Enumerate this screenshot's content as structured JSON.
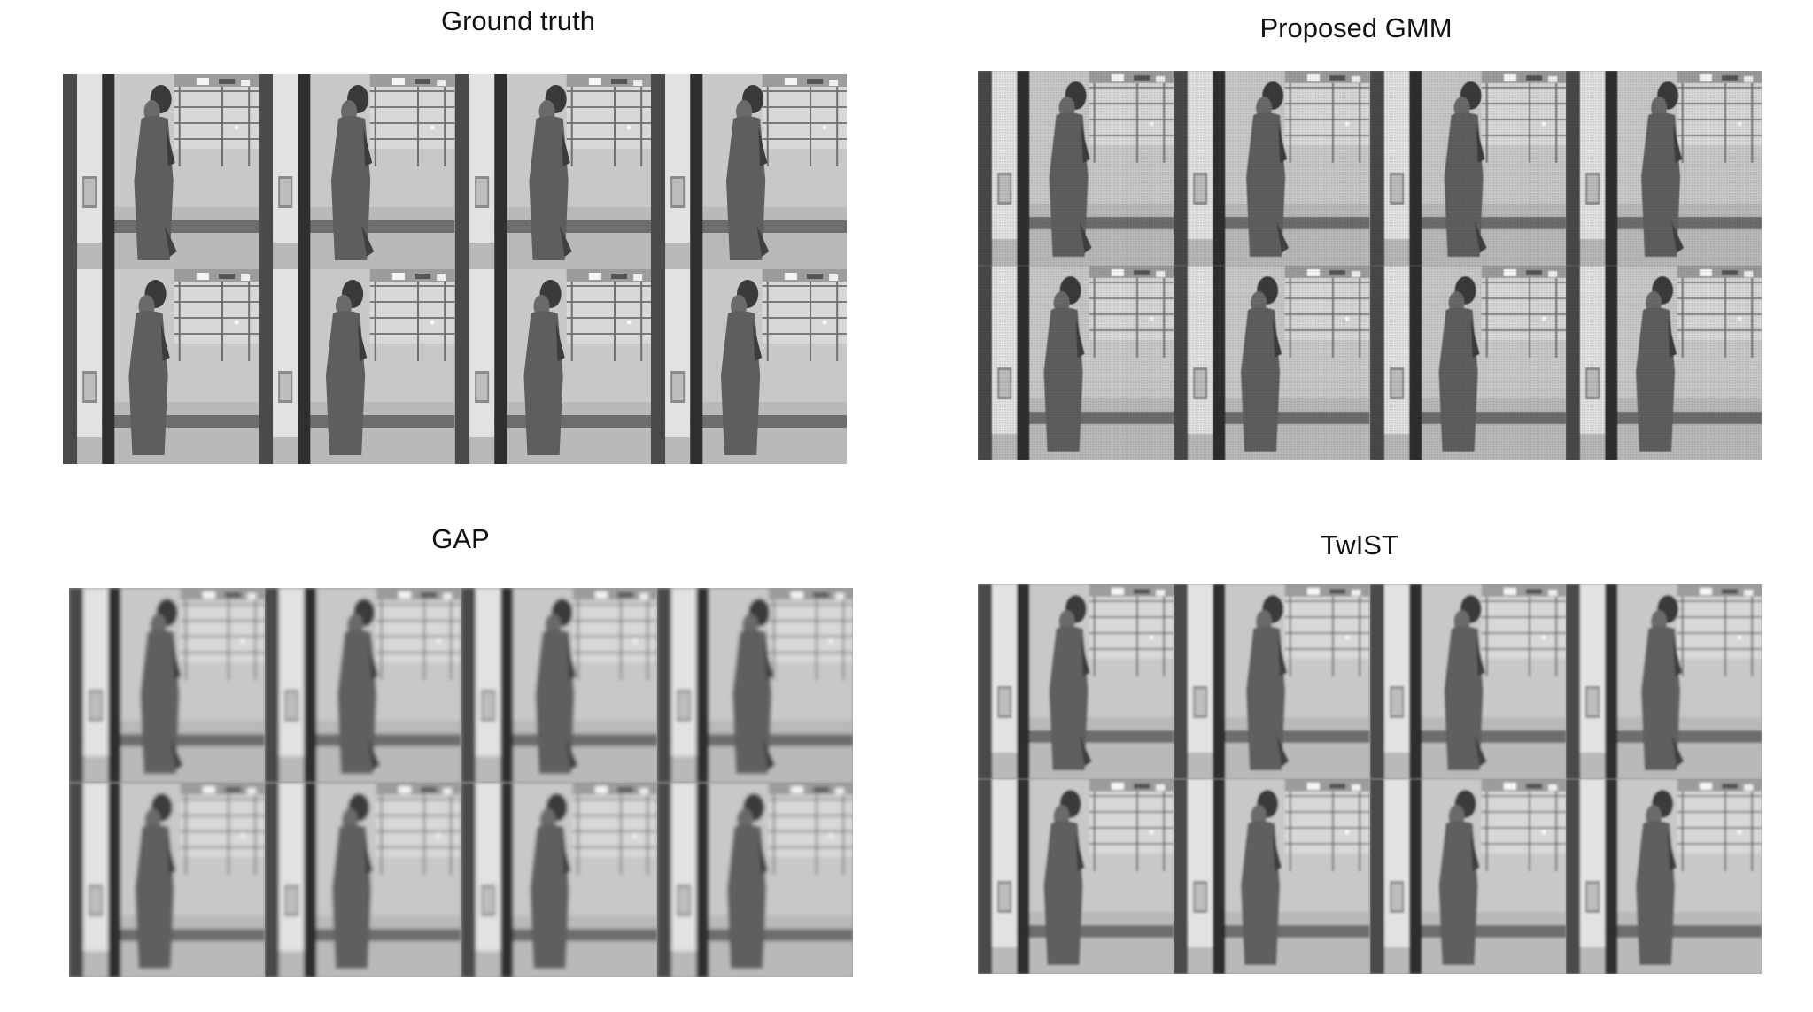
{
  "panels": [
    {
      "id": "ground-truth",
      "title": "Ground truth",
      "frames": 8,
      "quality": "sharp"
    },
    {
      "id": "proposed-gmm",
      "title": "Proposed GMM",
      "frames": 8,
      "quality": "textured"
    },
    {
      "id": "gap",
      "title": "GAP",
      "frames": 8,
      "quality": "blurred"
    },
    {
      "id": "twist",
      "title": "TwIST",
      "frames": 8,
      "quality": "soft"
    }
  ],
  "colors": {
    "background": "#ffffff",
    "title": "#111111"
  }
}
